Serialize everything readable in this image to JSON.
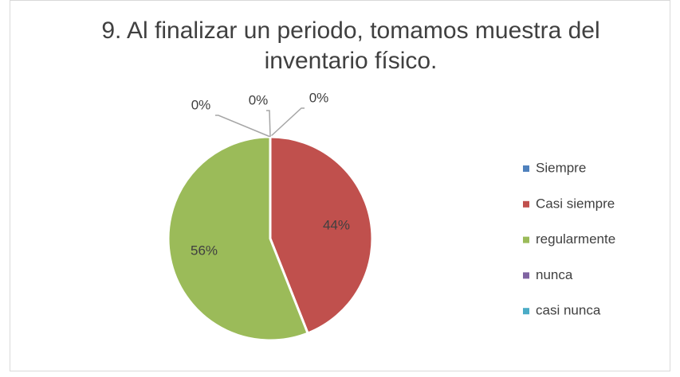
{
  "chart_data": {
    "type": "pie",
    "title": "9. Al finalizar un periodo, tomamos muestra del inventario físico.",
    "categories": [
      "Siempre",
      "Casi siempre",
      "regularmente",
      "nunca",
      "casi nunca"
    ],
    "values": [
      0,
      44,
      56,
      0,
      0
    ],
    "value_labels": [
      "0%",
      "44%",
      "56%",
      "0%",
      "0%"
    ],
    "colors": [
      "#4F81BD",
      "#C0504D",
      "#9BBB59",
      "#8064A2",
      "#4BACC6"
    ],
    "legend": "right"
  }
}
